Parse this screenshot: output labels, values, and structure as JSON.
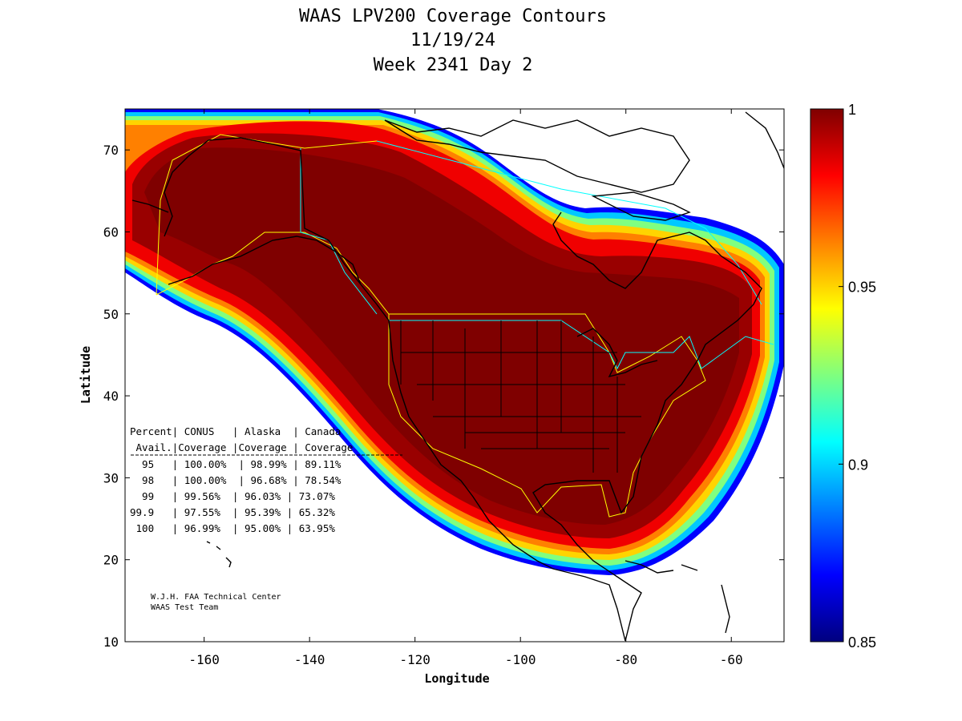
{
  "chart_data": {
    "type": "heatmap",
    "title_lines": [
      "WAAS LPV200 Coverage Contours",
      "11/19/24",
      "Week 2341 Day 2"
    ],
    "xlabel": "Longitude",
    "ylabel": "Latitude",
    "xlim": [
      -175,
      -50
    ],
    "ylim": [
      10,
      75
    ],
    "xticks": [
      -160,
      -140,
      -120,
      -100,
      -80,
      -60
    ],
    "yticks": [
      10,
      20,
      30,
      40,
      50,
      60,
      70
    ],
    "colorbar": {
      "range": [
        0.85,
        1
      ],
      "ticks": [
        {
          "value": 0.85,
          "label": "0.85"
        },
        {
          "value": 0.9,
          "label": "0.9"
        },
        {
          "value": 0.95,
          "label": "0.95"
        },
        {
          "value": 1,
          "label": "1"
        }
      ],
      "colors": [
        "#00007f",
        "#0000ff",
        "#007fff",
        "#00ffff",
        "#7fff7f",
        "#ffff00",
        "#ff7f00",
        "#ff0000",
        "#7f0000"
      ]
    },
    "coverage_table": {
      "header1": "Percent| CONUS   | Alaska  | Canada",
      "header2": " Avail.|Coverage |Coverage | Coverage",
      "rows": [
        "  95   | 100.00%  | 98.99% | 89.11%",
        "  98   | 100.00%  | 96.68% | 78.54%",
        "  99   | 99.56%  | 96.03% | 73.07%",
        "99.9   | 97.55%  | 95.39% | 65.32%",
        " 100   | 96.99%  | 95.00% | 63.95%"
      ]
    },
    "credit_lines": [
      "W.J.H. FAA Technical Center",
      "WAAS Test Team"
    ]
  }
}
